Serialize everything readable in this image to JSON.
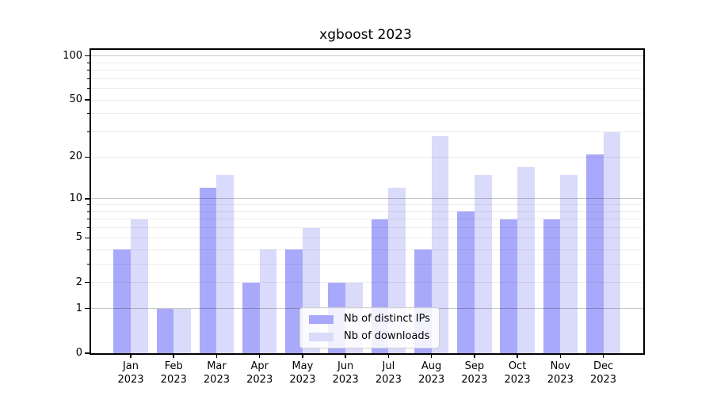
{
  "chart_data": {
    "type": "bar",
    "title": "xgboost 2023",
    "x_months": [
      "Jan",
      "Feb",
      "Mar",
      "Apr",
      "May",
      "Jun",
      "Jul",
      "Aug",
      "Sep",
      "Oct",
      "Nov",
      "Dec"
    ],
    "x_year": "2023",
    "series": [
      {
        "name": "Nb of distinct IPs",
        "color": "#a9a9fb",
        "values": [
          4,
          1,
          12,
          2,
          4,
          2,
          7,
          4,
          8,
          7,
          7,
          21
        ]
      },
      {
        "name": "Nb of downloads",
        "color": "#dadafb",
        "values": [
          7,
          1,
          15,
          4,
          6,
          2,
          12,
          28,
          15,
          17,
          15,
          30
        ]
      }
    ],
    "y_ticks": [
      0,
      1,
      2,
      5,
      10,
      20,
      50,
      100
    ],
    "y_gridlines": {
      "major": [
        1,
        10,
        100
      ],
      "minor": [
        2,
        3,
        4,
        5,
        6,
        7,
        8,
        9,
        20,
        30,
        40,
        50,
        60,
        70,
        80,
        90
      ]
    },
    "scale": "log1p",
    "ylim": [
      0,
      110
    ],
    "grid": true,
    "legend_position": "lower center",
    "background": "#ffffff",
    "axis_color": "#000000"
  }
}
